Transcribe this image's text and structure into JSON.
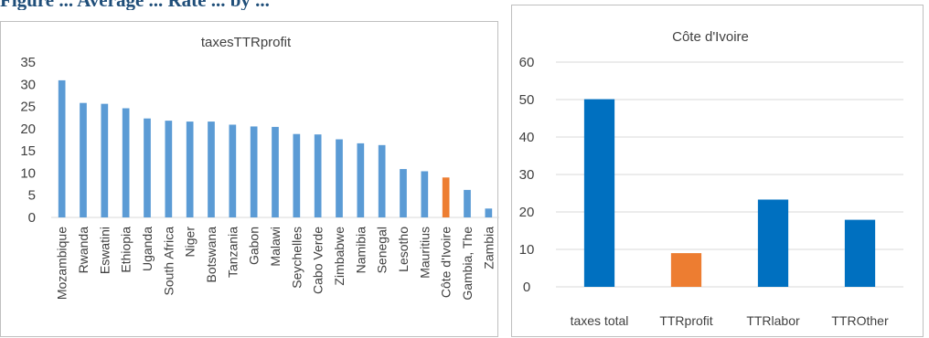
{
  "heading": "Figure ... Average ... Rate ... by ...",
  "chart_data": [
    {
      "type": "bar",
      "title": "taxesTTRprofit",
      "categories": [
        "Mozambique",
        "Rwanda",
        "Eswatini",
        "Ethiopia",
        "Uganda",
        "South Africa",
        "Niger",
        "Botswana",
        "Tanzania",
        "Gabon",
        "Malawi",
        "Seychelles",
        "Cabo Verde",
        "Zimbabwe",
        "Namibia",
        "Senegal",
        "Lesotho",
        "Mauritius",
        "Côte d'Ivoire",
        "Gambia, The",
        "Zambia"
      ],
      "values": [
        30.9,
        25.8,
        25.6,
        24.6,
        22.3,
        21.8,
        21.6,
        21.6,
        20.9,
        20.5,
        20.4,
        18.8,
        18.7,
        17.6,
        16.7,
        16.3,
        10.9,
        10.4,
        9.0,
        6.2,
        2.0
      ],
      "highlight_index": 18,
      "yticks": [
        0,
        5,
        10,
        15,
        20,
        25,
        30,
        35
      ],
      "ylim": [
        0,
        35
      ],
      "grid": false,
      "colors": {
        "bar": "#5b9bd5",
        "highlight": "#ed7d31"
      }
    },
    {
      "type": "bar",
      "title": "Côte d'Ivoire",
      "categories": [
        "taxes total",
        "TTRprofit",
        "TTRlabor",
        "TTROther"
      ],
      "values": [
        50.1,
        9.0,
        23.3,
        17.9
      ],
      "highlight_index": 1,
      "yticks": [
        0,
        10,
        20,
        30,
        40,
        50,
        60
      ],
      "ylim": [
        0,
        60
      ],
      "grid": true,
      "colors": {
        "bar": "#0070c0",
        "highlight": "#ed7d31"
      }
    }
  ]
}
